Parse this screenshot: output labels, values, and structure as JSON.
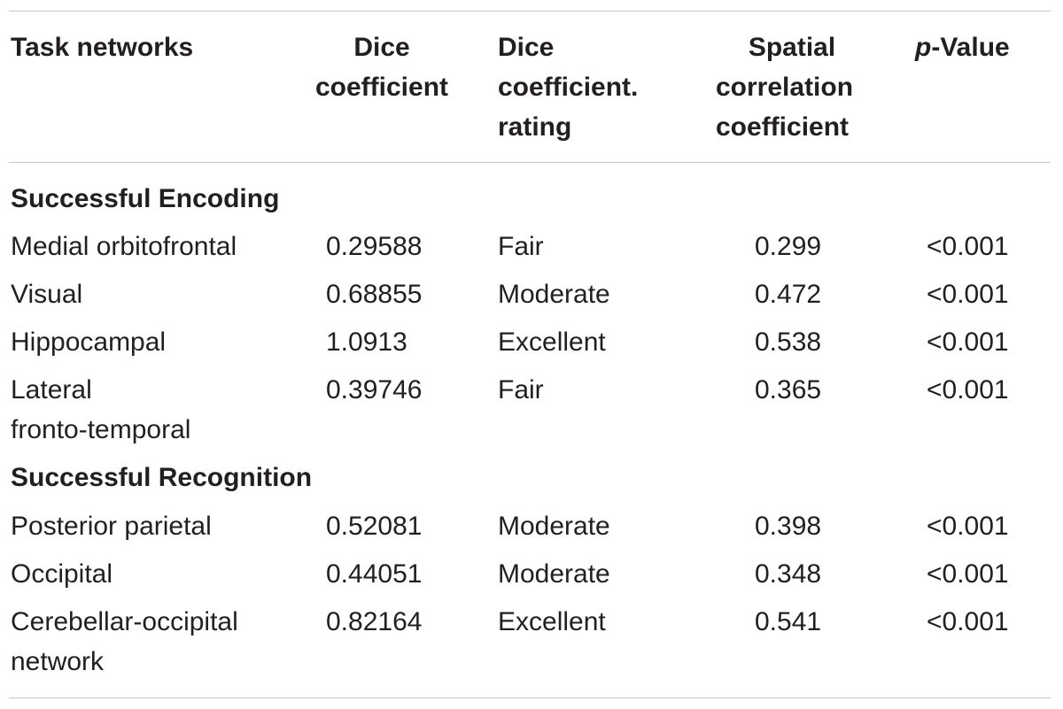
{
  "headers": {
    "task_networks": "Task networks",
    "dice_line1": "Dice",
    "dice_line2": "coefficient",
    "rating_line1": "Dice",
    "rating_line2": "coefficient.",
    "rating_line3": "rating",
    "spatial_line1": "Spatial",
    "spatial_line2": "correlation",
    "spatial_line3": "coefficient",
    "p_italic": "p",
    "p_rest": "-Value"
  },
  "sections": [
    {
      "title": "Successful Encoding",
      "rows": [
        {
          "network": "Medial orbitofrontal",
          "network2": "",
          "dice": "0.29588",
          "rating": "Fair",
          "spatial": "0.299",
          "p": "<0.001"
        },
        {
          "network": "Visual",
          "network2": "",
          "dice": "0.68855",
          "rating": "Moderate",
          "spatial": "0.472",
          "p": "<0.001"
        },
        {
          "network": "Hippocampal",
          "network2": "",
          "dice": "1.0913",
          "rating": "Excellent",
          "spatial": "0.538",
          "p": "<0.001"
        },
        {
          "network": "Lateral",
          "network2": "fronto-temporal",
          "dice": "0.39746",
          "rating": "Fair",
          "spatial": "0.365",
          "p": "<0.001"
        }
      ]
    },
    {
      "title": "Successful Recognition",
      "rows": [
        {
          "network": "Posterior parietal",
          "network2": "",
          "dice": "0.52081",
          "rating": "Moderate",
          "spatial": "0.398",
          "p": "<0.001"
        },
        {
          "network": "Occipital",
          "network2": "",
          "dice": "0.44051",
          "rating": "Moderate",
          "spatial": "0.348",
          "p": "<0.001"
        },
        {
          "network": "Cerebellar-occipital",
          "network2": "network",
          "dice": "0.82164",
          "rating": "Excellent",
          "spatial": "0.541",
          "p": "<0.001"
        }
      ]
    }
  ]
}
